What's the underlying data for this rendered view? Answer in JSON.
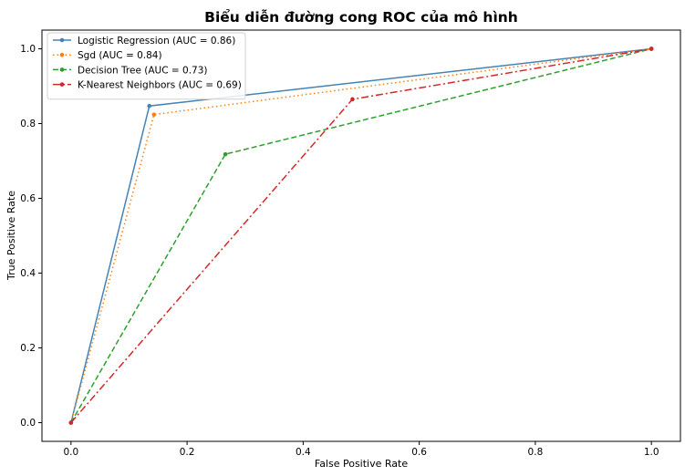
{
  "chart_data": {
    "type": "line",
    "title": "Biểu diễn đường cong ROC của mô hình",
    "xlabel": "False Positive Rate",
    "ylabel": "True Positive Rate",
    "xlim": [
      -0.05,
      1.05
    ],
    "ylim": [
      -0.05,
      1.05
    ],
    "xticks": [
      "0.0",
      "0.2",
      "0.4",
      "0.6",
      "0.8",
      "1.0"
    ],
    "yticks": [
      "0.0",
      "0.2",
      "0.4",
      "0.6",
      "0.8",
      "1.0"
    ],
    "grid": false,
    "legend_position": "upper-left",
    "series": [
      {
        "name": "Logistic Regression (AUC = 0.86)",
        "color": "#4682b4",
        "style": "solid",
        "marker": "dot",
        "points": [
          [
            0.0,
            0.0
          ],
          [
            0.135,
            0.847
          ],
          [
            1.0,
            1.0
          ]
        ]
      },
      {
        "name": "Sgd (AUC = 0.84)",
        "color": "#ff7f0e",
        "style": "dotted",
        "marker": "dot",
        "points": [
          [
            0.0,
            0.0
          ],
          [
            0.143,
            0.824
          ],
          [
            1.0,
            1.0
          ]
        ]
      },
      {
        "name": "Decision Tree (AUC = 0.73)",
        "color": "#2ca02c",
        "style": "dashed",
        "marker": "dot",
        "points": [
          [
            0.0,
            0.0
          ],
          [
            0.266,
            0.718
          ],
          [
            1.0,
            1.0
          ]
        ]
      },
      {
        "name": "K-Nearest Neighbors (AUC = 0.69)",
        "color": "#d62728",
        "style": "dashdot",
        "marker": "dot",
        "points": [
          [
            0.0,
            0.0
          ],
          [
            0.485,
            0.865
          ],
          [
            1.0,
            1.0
          ]
        ]
      }
    ]
  }
}
